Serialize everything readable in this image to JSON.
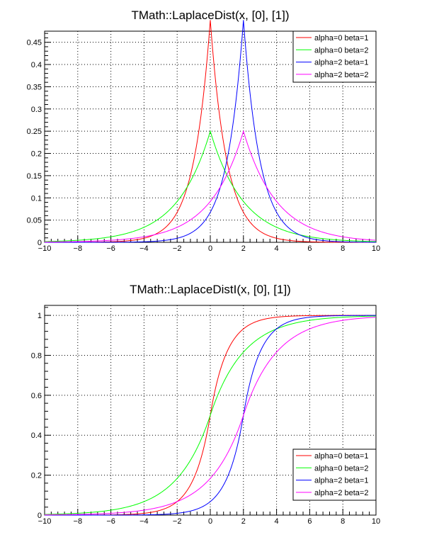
{
  "chart_data": [
    {
      "type": "line",
      "title": "TMath::LaplaceDist(x, [0], [1])",
      "function": "pdf",
      "xlim": [
        -10,
        10
      ],
      "ylim": [
        0,
        0.475
      ],
      "x_ticks": [
        -10,
        -8,
        -6,
        -4,
        -2,
        0,
        2,
        4,
        6,
        8,
        10
      ],
      "y_ticks": [
        0,
        0.05,
        0.1,
        0.15,
        0.2,
        0.25,
        0.3,
        0.35,
        0.4,
        0.45
      ],
      "grid": true,
      "legend_position": "top-right",
      "series": [
        {
          "name": "alpha=0 beta=1",
          "alpha": 0,
          "beta": 1,
          "color": "#ff0000"
        },
        {
          "name": "alpha=0 beta=2",
          "alpha": 0,
          "beta": 2,
          "color": "#00ff00"
        },
        {
          "name": "alpha=2 beta=1",
          "alpha": 2,
          "beta": 1,
          "color": "#0000ff"
        },
        {
          "name": "alpha=2 beta=2",
          "alpha": 2,
          "beta": 2,
          "color": "#ff00ff"
        }
      ]
    },
    {
      "type": "line",
      "title": "TMath::LaplaceDistI(x, [0], [1])",
      "function": "cdf",
      "xlim": [
        -10,
        10
      ],
      "ylim": [
        0,
        1.05
      ],
      "x_ticks": [
        -10,
        -8,
        -6,
        -4,
        -2,
        0,
        2,
        4,
        6,
        8,
        10
      ],
      "y_ticks": [
        0,
        0.2,
        0.4,
        0.6,
        0.8,
        1
      ],
      "grid": true,
      "legend_position": "bottom-right",
      "series": [
        {
          "name": "alpha=0 beta=1",
          "alpha": 0,
          "beta": 1,
          "color": "#ff0000"
        },
        {
          "name": "alpha=0 beta=2",
          "alpha": 0,
          "beta": 2,
          "color": "#00ff00"
        },
        {
          "name": "alpha=2 beta=1",
          "alpha": 2,
          "beta": 1,
          "color": "#0000ff"
        },
        {
          "name": "alpha=2 beta=2",
          "alpha": 2,
          "beta": 2,
          "color": "#ff00ff"
        }
      ]
    }
  ]
}
